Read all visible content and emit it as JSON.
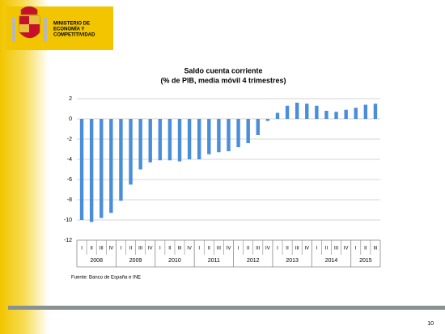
{
  "header": {
    "lines": [
      "MINISTERIO DE",
      "ECONOMÍA Y",
      "COMPETITIVIDAD"
    ]
  },
  "chart_data": {
    "type": "bar",
    "title": "Saldo cuenta corriente",
    "subtitle": "(% de PIB, media móvil 4 trimestres)",
    "categories": [
      "I",
      "II",
      "III",
      "IV",
      "I",
      "II",
      "III",
      "IV",
      "I",
      "II",
      "III",
      "IV",
      "I",
      "II",
      "III",
      "IV",
      "I",
      "II",
      "III",
      "IV",
      "I",
      "II",
      "III",
      "IV",
      "I",
      "II",
      "III",
      "IV",
      "I",
      "II",
      "III"
    ],
    "years": [
      "2008",
      "2009",
      "2010",
      "2011",
      "2012",
      "2013",
      "2014",
      "2015"
    ],
    "values": [
      -10.0,
      -10.2,
      -9.8,
      -9.3,
      -8.1,
      -6.5,
      -5.0,
      -4.3,
      -4.1,
      -4.1,
      -4.2,
      -4.0,
      -4.0,
      -3.5,
      -3.3,
      -3.2,
      -2.8,
      -2.4,
      -1.6,
      -0.2,
      0.6,
      1.3,
      1.6,
      1.5,
      1.3,
      0.8,
      0.7,
      0.9,
      1.1,
      1.4,
      1.5
    ],
    "color": "#4a8edb",
    "ylim": [
      -12,
      2
    ],
    "yticks": [
      -12,
      -10,
      -8,
      -6,
      -4,
      -2,
      0,
      2
    ],
    "grid": true,
    "source": "Fuente: Banco de España e INE"
  },
  "page_number": "10"
}
